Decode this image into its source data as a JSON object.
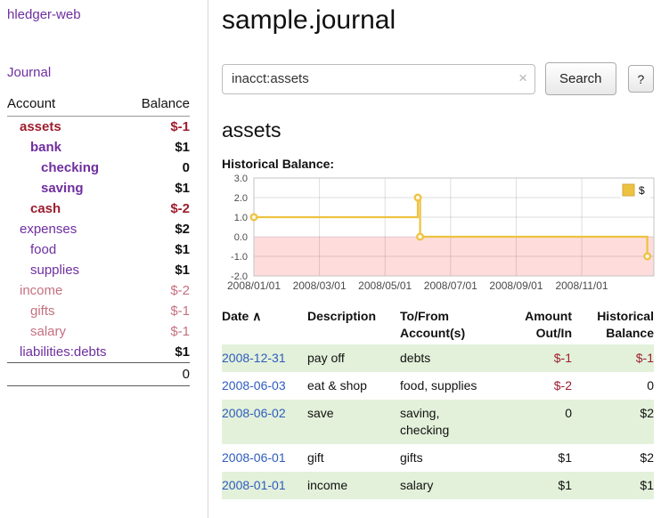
{
  "colors": {
    "link_purple": "#6f2f9f",
    "date_blue": "#2e5bbf",
    "negative_strong": "#9d1d2e",
    "negative_soft": "#c4717f",
    "row_green": "#e3f1da",
    "chart_line": "#edc240",
    "chart_negative_region": "#ffdcdc"
  },
  "app": {
    "title": "hledger-web",
    "nav_journal": "Journal"
  },
  "sidebar": {
    "headers": {
      "account": "Account",
      "balance": "Balance"
    },
    "accounts": [
      {
        "name": "assets",
        "balance": "$-1",
        "depth": 0,
        "name_color": "neg-strong",
        "name_bold": true,
        "bal_color": "neg-strong",
        "bal_bold": true
      },
      {
        "name": "bank",
        "balance": "$1",
        "depth": 1,
        "name_color": "purple",
        "name_bold": true,
        "bal_color": "plain",
        "bal_bold": true
      },
      {
        "name": "checking",
        "balance": "0",
        "depth": 2,
        "name_color": "purple",
        "name_bold": true,
        "bal_color": "plain",
        "bal_bold": true
      },
      {
        "name": "saving",
        "balance": "$1",
        "depth": 2,
        "name_color": "purple",
        "name_bold": true,
        "bal_color": "plain",
        "bal_bold": true
      },
      {
        "name": "cash",
        "balance": "$-2",
        "depth": 1,
        "name_color": "neg-strong",
        "name_bold": true,
        "bal_color": "neg-strong",
        "bal_bold": true
      },
      {
        "name": "expenses",
        "balance": "$2",
        "depth": 0,
        "name_color": "purple",
        "name_bold": false,
        "bal_color": "plain",
        "bal_bold": true
      },
      {
        "name": "food",
        "balance": "$1",
        "depth": 1,
        "name_color": "purple",
        "name_bold": false,
        "bal_color": "plain",
        "bal_bold": true
      },
      {
        "name": "supplies",
        "balance": "$1",
        "depth": 1,
        "name_color": "purple",
        "name_bold": false,
        "bal_color": "plain",
        "bal_bold": true
      },
      {
        "name": "income",
        "balance": "$-2",
        "depth": 0,
        "name_color": "neg-soft",
        "name_bold": false,
        "bal_color": "neg-soft",
        "bal_bold": false
      },
      {
        "name": "gifts",
        "balance": "$-1",
        "depth": 1,
        "name_color": "neg-soft",
        "name_bold": false,
        "bal_color": "neg-soft",
        "bal_bold": false
      },
      {
        "name": "salary",
        "balance": "$-1",
        "depth": 1,
        "name_color": "neg-soft",
        "name_bold": false,
        "bal_color": "neg-soft",
        "bal_bold": false
      },
      {
        "name": "liabilities:debts",
        "balance": "$1",
        "depth": 0,
        "name_color": "purple",
        "name_bold": false,
        "bal_color": "plain",
        "bal_bold": true
      }
    ],
    "total": "0"
  },
  "main": {
    "title": "sample.journal",
    "search": {
      "value": "inacct:assets",
      "clear_icon": "×",
      "button_label": "Search",
      "help_label": "?"
    },
    "account_heading": "assets"
  },
  "chart_data": {
    "type": "line",
    "title": "Historical Balance:",
    "step": true,
    "xlim": [
      0,
      12.2
    ],
    "ylim": [
      -2,
      3
    ],
    "grid": true,
    "legend": {
      "label": "$",
      "position": "top-right"
    },
    "negative_region_color": "#ffdcdc",
    "series": [
      {
        "name": "$",
        "color": "#edc240",
        "points": [
          {
            "date": "2008-01-01",
            "x": 0,
            "y": 1
          },
          {
            "date": "2008-06-01",
            "x": 5.0,
            "y": 2
          },
          {
            "date": "2008-06-03",
            "x": 5.07,
            "y": 0
          },
          {
            "date": "2008-12-31",
            "x": 12.0,
            "y": -1
          }
        ]
      }
    ],
    "x_ticks": [
      {
        "v": 0,
        "label": "2008/01/01"
      },
      {
        "v": 2,
        "label": "2008/03/01"
      },
      {
        "v": 4,
        "label": "2008/05/01"
      },
      {
        "v": 6,
        "label": "2008/07/01"
      },
      {
        "v": 8,
        "label": "2008/09/01"
      },
      {
        "v": 10,
        "label": "2008/11/01"
      }
    ],
    "y_ticks": [
      {
        "v": 3,
        "label": "3.0"
      },
      {
        "v": 2,
        "label": "2.0"
      },
      {
        "v": 1,
        "label": "1.0"
      },
      {
        "v": 0,
        "label": "0.0"
      },
      {
        "v": -1,
        "label": "-1.0"
      },
      {
        "v": -2,
        "label": "-2.0"
      }
    ]
  },
  "register": {
    "columns": [
      {
        "id": "date",
        "line1": "Date",
        "line2": "",
        "align": "left",
        "sort_icon": "∧"
      },
      {
        "id": "description",
        "line1": "Description",
        "line2": "",
        "align": "left"
      },
      {
        "id": "accounts",
        "line1": "To/From",
        "line2": "Account(s)",
        "align": "left"
      },
      {
        "id": "amount",
        "line1": "Amount",
        "line2": "Out/In",
        "align": "right"
      },
      {
        "id": "balance",
        "line1": "Historical",
        "line2": "Balance",
        "align": "right"
      }
    ],
    "rows": [
      {
        "date": "2008-12-31",
        "description": "pay off",
        "accounts": "debts",
        "wrap_accounts": false,
        "amount": "$-1",
        "amount_neg": true,
        "balance": "$-1",
        "balance_neg": true,
        "shaded": true
      },
      {
        "date": "2008-06-03",
        "description": "eat & shop",
        "accounts": "food, supplies",
        "wrap_accounts": false,
        "amount": "$-2",
        "amount_neg": true,
        "balance": "0",
        "balance_neg": false,
        "shaded": false
      },
      {
        "date": "2008-06-02",
        "description": "save",
        "accounts": "saving, checking",
        "wrap_accounts": true,
        "amount": "0",
        "amount_neg": false,
        "balance": "$2",
        "balance_neg": false,
        "shaded": true
      },
      {
        "date": "2008-06-01",
        "description": "gift",
        "accounts": "gifts",
        "wrap_accounts": false,
        "amount": "$1",
        "amount_neg": false,
        "balance": "$2",
        "balance_neg": false,
        "shaded": false
      },
      {
        "date": "2008-01-01",
        "description": "income",
        "accounts": "salary",
        "wrap_accounts": false,
        "amount": "$1",
        "amount_neg": false,
        "balance": "$1",
        "balance_neg": false,
        "shaded": true
      }
    ]
  }
}
